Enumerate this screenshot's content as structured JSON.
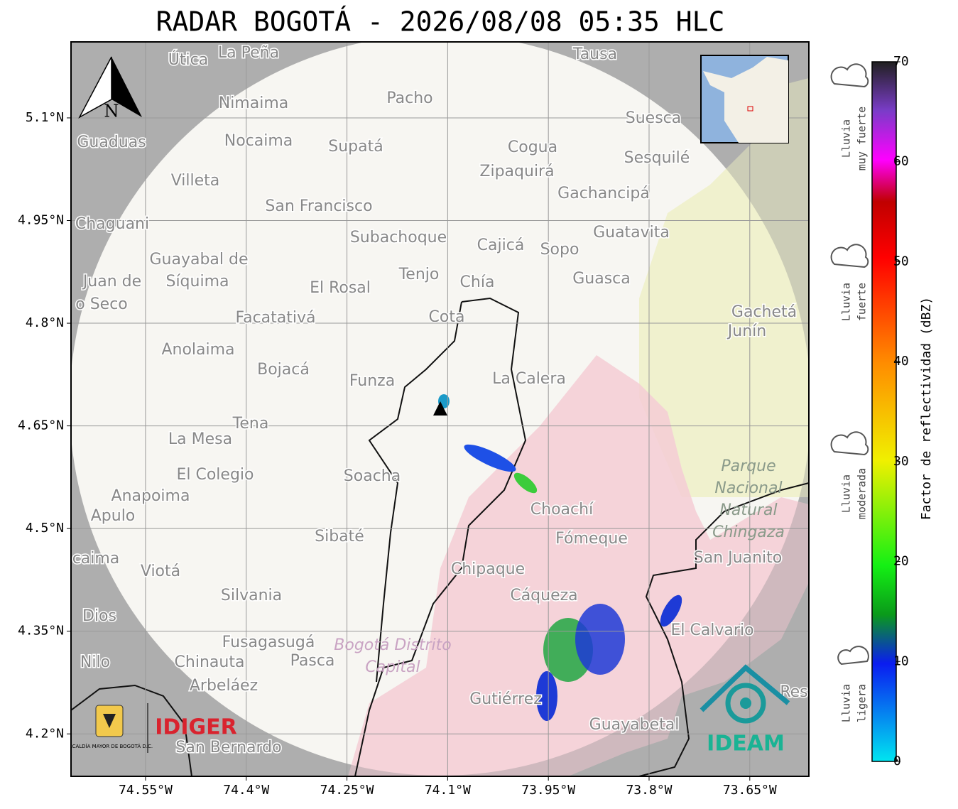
{
  "title": "RADAR BOGOTÁ - 2026/08/08 05:35 HLC",
  "map": {
    "xlim": [
      -74.661,
      -73.562
    ],
    "ylim": [
      4.138,
      5.211
    ],
    "grid": true,
    "xticks": [
      {
        "value": -74.55,
        "label": "74.55°W"
      },
      {
        "value": -74.4,
        "label": "74.4°W"
      },
      {
        "value": -74.25,
        "label": "74.25°W"
      },
      {
        "value": -74.1,
        "label": "74.1°W"
      },
      {
        "value": -73.95,
        "label": "73.95°W"
      },
      {
        "value": -73.8,
        "label": "73.8°W"
      },
      {
        "value": -73.65,
        "label": "73.65°W"
      }
    ],
    "yticks": [
      {
        "value": 5.1,
        "label": "5.1°N"
      },
      {
        "value": 4.95,
        "label": "4.95°N"
      },
      {
        "value": 4.8,
        "label": "4.8°N"
      },
      {
        "value": 4.65,
        "label": "4.65°N"
      },
      {
        "value": 4.5,
        "label": "4.5°N"
      },
      {
        "value": 4.35,
        "label": "4.35°N"
      },
      {
        "value": 4.2,
        "label": "4.2°N"
      }
    ],
    "north": "N",
    "places": [
      "La Peña",
      "Útica",
      "Tausa",
      "Pacho",
      "Nimaima",
      "Guaduas",
      "Nocaima",
      "Supatá",
      "Cogua",
      "Suesca",
      "Sesquilé",
      "Zipaquirá",
      "Villeta",
      "Gachancipá",
      "San Francisco",
      "Chaguani",
      "Guatavita",
      "Subachoque",
      "Cajicá",
      "Sopo",
      "Guayabal de",
      "Síquima",
      "Juan de",
      "Tenjo",
      "Chía",
      "Guasca",
      "El Rosal",
      "o Seco",
      "Facatativá",
      "Cota",
      "Gachetá",
      "Junín",
      "Anolaima",
      "Bojacá",
      "Funza",
      "La Calera",
      "Tena",
      "La Mesa",
      "El Colegio",
      "Soacha",
      "Anapoima",
      "Apulo",
      "Choachí",
      "Sibaté",
      "Fómeque",
      "San Juanito",
      "caima",
      "Viotá",
      "Chipaque",
      "Silvania",
      "Cáqueza",
      "Dios",
      "El Calvario",
      "Fusagasugá",
      "Nilo",
      "Chinauta",
      "Pasca",
      "Arbeláez",
      "Gutiérrez",
      "Guayabetal",
      "San Bernardo",
      "Res"
    ],
    "park": [
      "Parque",
      "Nacional",
      "Natural",
      "Chingaza"
    ],
    "district": [
      "Bogotá Distrito",
      "Capital"
    ],
    "logos": {
      "alcaldia": "ALCALDÍA MAYOR DE BOGOTÁ D.C.",
      "idiger": "IDIGER",
      "ideam": "IDEAM"
    }
  },
  "colorbar": {
    "label": "Factor de reflectividad (dBZ)",
    "lim": [
      0,
      70
    ],
    "ticks": [
      0,
      10,
      20,
      30,
      40,
      50,
      60,
      70
    ],
    "categories": [
      [
        "Lluvia",
        "muy fuerte"
      ],
      [
        "Lluvia",
        "fuerte"
      ],
      [
        "Lluvia",
        "moderada"
      ],
      [
        "Lluvia",
        "ligera"
      ]
    ]
  }
}
